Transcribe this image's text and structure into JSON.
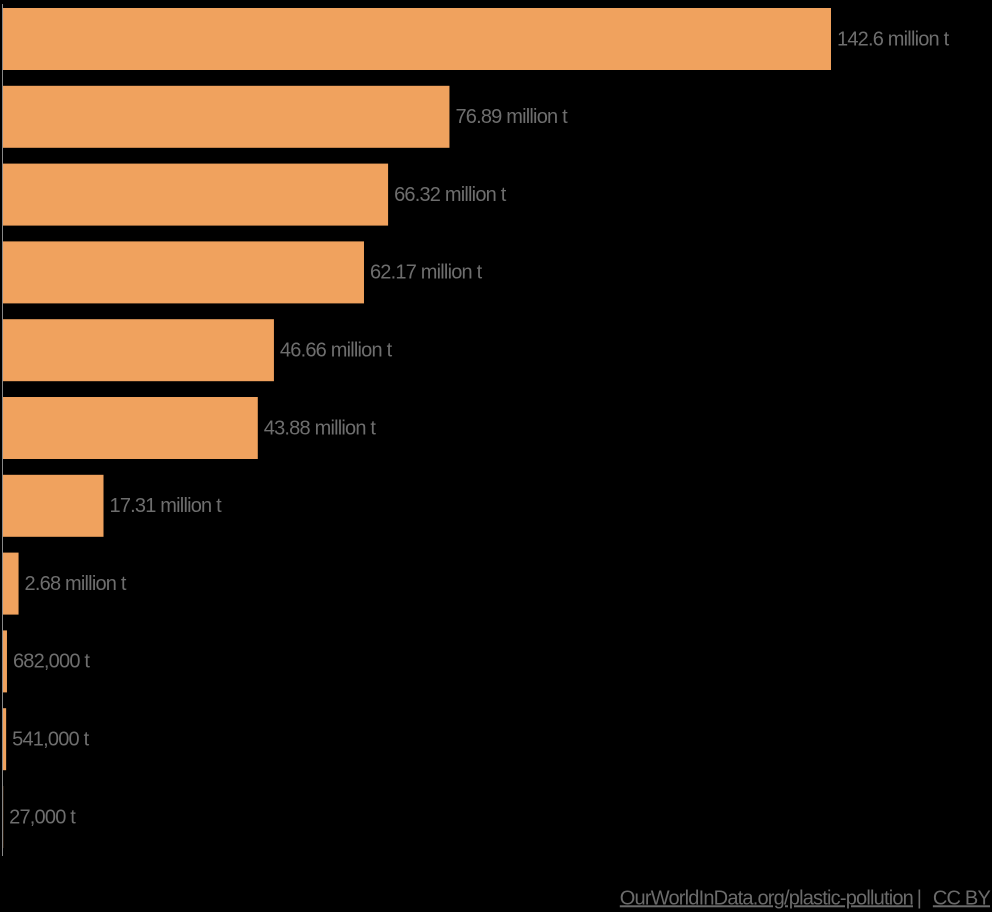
{
  "chart_data": {
    "type": "bar",
    "orientation": "horizontal",
    "color": "#f0a25e",
    "values": [
      142600000,
      76890000,
      66320000,
      62170000,
      46660000,
      43880000,
      17310000,
      2680000,
      682000,
      541000,
      27000
    ],
    "value_labels": [
      "142.6 million t",
      "76.89 million t",
      "66.32 million t",
      "62.17 million t",
      "46.66 million t",
      "43.88 million t",
      "17.31 million t",
      "2.68 million t",
      "682,000 t",
      "541,000 t",
      "27,000 t"
    ],
    "source": "OurWorldInData.org/plastic-pollution",
    "license": "CC BY"
  }
}
